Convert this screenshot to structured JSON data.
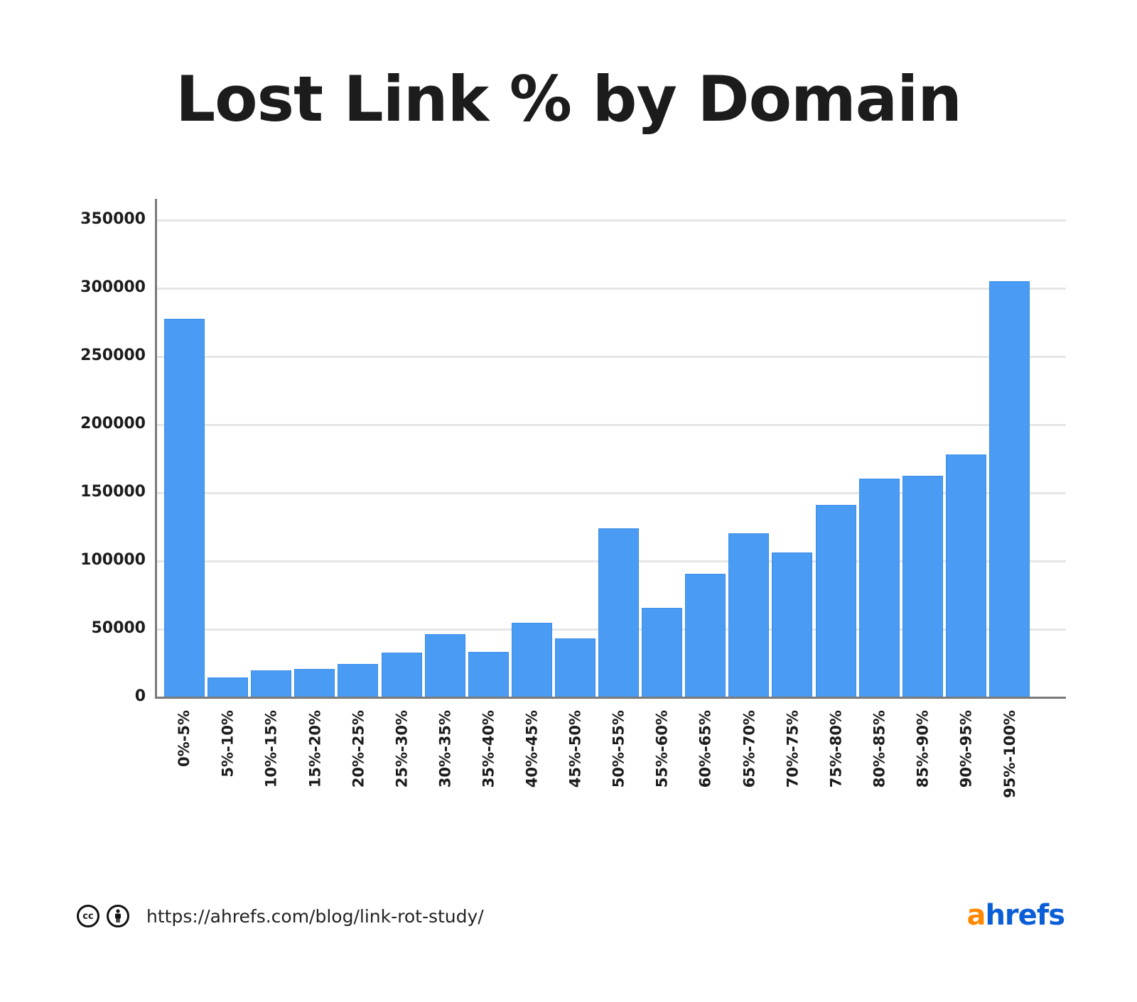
{
  "title": "Lost Link % by Domain",
  "footer": {
    "license_icons": [
      "cc-icon",
      "by-attribution-icon"
    ],
    "url": "https://ahrefs.com/blog/link-rot-study/",
    "logo_a": "a",
    "logo_rest": "hrefs"
  },
  "colors": {
    "bar": "#4a9bf3",
    "logo_orange": "#ff8800",
    "logo_blue": "#0a5ed6"
  },
  "y_ticks": [
    "350000",
    "300000",
    "250000",
    "200000",
    "150000",
    "100000",
    "50000",
    "0"
  ],
  "chart_data": {
    "type": "bar",
    "title": "Lost Link % by Domain",
    "xlabel": "",
    "ylabel": "",
    "ylim": [
      0,
      370000
    ],
    "yticks": [
      0,
      50000,
      100000,
      150000,
      200000,
      250000,
      300000,
      350000
    ],
    "grid": true,
    "legend": null,
    "categories": [
      "0%-5%",
      "5%-10%",
      "10%-15%",
      "15%-20%",
      "20%-25%",
      "25%-30%",
      "30%-35%",
      "35%-40%",
      "40%-45%",
      "45%-50%",
      "50%-55%",
      "55%-60%",
      "60%-65%",
      "65%-70%",
      "70%-75%",
      "75%-80%",
      "80%-85%",
      "85%-90%",
      "90%-95%",
      "95%-100%"
    ],
    "values": [
      277600,
      14600,
      19800,
      20800,
      24500,
      32800,
      46400,
      33300,
      54700,
      43200,
      124000,
      65600,
      90600,
      120300,
      106200,
      141100,
      160400,
      162500,
      178100,
      305200
    ]
  }
}
